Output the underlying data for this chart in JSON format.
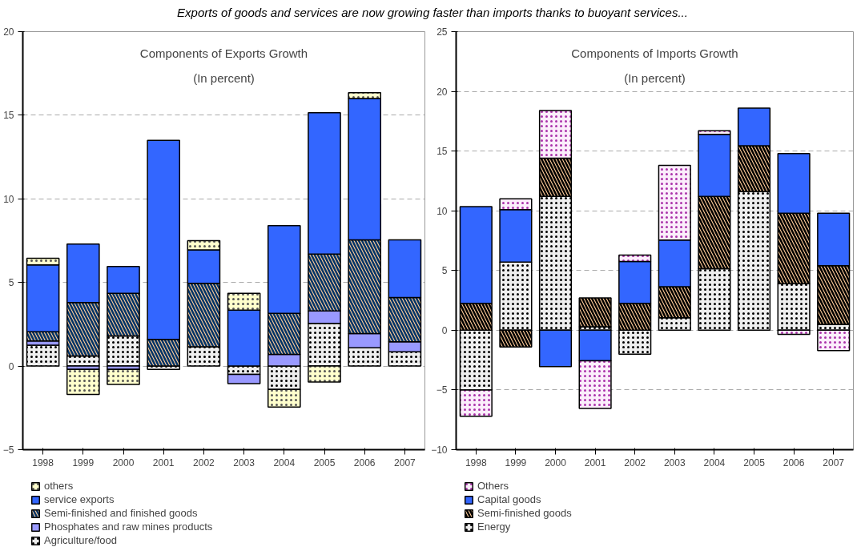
{
  "chart_data": [
    {
      "type": "bar",
      "stacked": true,
      "title": "Components of Exports Growth",
      "subtitle": "(In percent)",
      "annotations": [
        "Exports of goods and services are now growing faster than imports thanks to buoyant services..."
      ],
      "categories": [
        "1998",
        "1999",
        "2000",
        "2001",
        "2002",
        "2003",
        "2004",
        "2005",
        "2006",
        "2007"
      ],
      "ylim": [
        -5,
        20
      ],
      "yticks": [
        -5,
        0,
        5,
        10,
        15,
        20
      ],
      "grid": "y",
      "legend": "bottom",
      "series": [
        {
          "name": "Agriculture/food",
          "color": "#eeeeee",
          "values": [
            1.25,
            0.6,
            1.8,
            -0.2,
            1.15,
            -0.5,
            -1.4,
            2.55,
            1.1,
            0.85
          ]
        },
        {
          "name": "Phosphates and raw mines products",
          "color": "#9999ff",
          "values": [
            0.25,
            -0.2,
            -0.2,
            null,
            null,
            -0.55,
            0.7,
            0.75,
            0.85,
            0.6
          ]
        },
        {
          "name": "Semi-finished and finished goods",
          "color": "#ffcc99",
          "values": [
            0.55,
            3.2,
            2.55,
            1.6,
            3.8,
            null,
            2.45,
            3.4,
            5.6,
            2.65
          ]
        },
        {
          "name": "service exports",
          "color": "#3366ff",
          "values": [
            4.0,
            3.5,
            1.6,
            11.9,
            2.0,
            3.35,
            5.25,
            8.45,
            8.45,
            3.45
          ]
        },
        {
          "name": "others",
          "color": "#ffffcc",
          "values": [
            0.4,
            -1.5,
            -0.9,
            null,
            0.55,
            1.0,
            -1.05,
            -0.95,
            0.35,
            null
          ]
        }
      ]
    },
    {
      "type": "bar",
      "stacked": true,
      "title": "Components of Imports Growth",
      "subtitle": "(In percent)",
      "categories": [
        "1998",
        "1999",
        "2000",
        "2001",
        "2002",
        "2003",
        "2004",
        "2005",
        "2006",
        "2007"
      ],
      "ylim": [
        -10,
        25
      ],
      "yticks": [
        -10,
        -5,
        0,
        5,
        10,
        15,
        20,
        25
      ],
      "grid": "y",
      "legend": "bottom",
      "series": [
        {
          "name": "Energy",
          "color": "#eeeeee",
          "values": [
            -5.0,
            5.7,
            11.2,
            0.3,
            -2.0,
            1.05,
            5.15,
            11.6,
            3.9,
            0.5
          ]
        },
        {
          "name": "Semi-finished goods",
          "color": "#ffcc99",
          "values": [
            2.25,
            -1.4,
            3.2,
            2.4,
            2.25,
            2.6,
            6.05,
            3.85,
            5.9,
            4.9
          ]
        },
        {
          "name": "Capital goods",
          "color": "#3366ff",
          "values": [
            8.1,
            4.4,
            -3.05,
            -2.55,
            3.5,
            3.9,
            5.2,
            3.15,
            5.0,
            4.4
          ]
        },
        {
          "name": "Others",
          "color": "#fbeefb",
          "values": [
            -2.2,
            0.9,
            4.0,
            -4.0,
            0.55,
            6.25,
            0.3,
            null,
            -0.35,
            -1.7
          ]
        }
      ]
    }
  ]
}
